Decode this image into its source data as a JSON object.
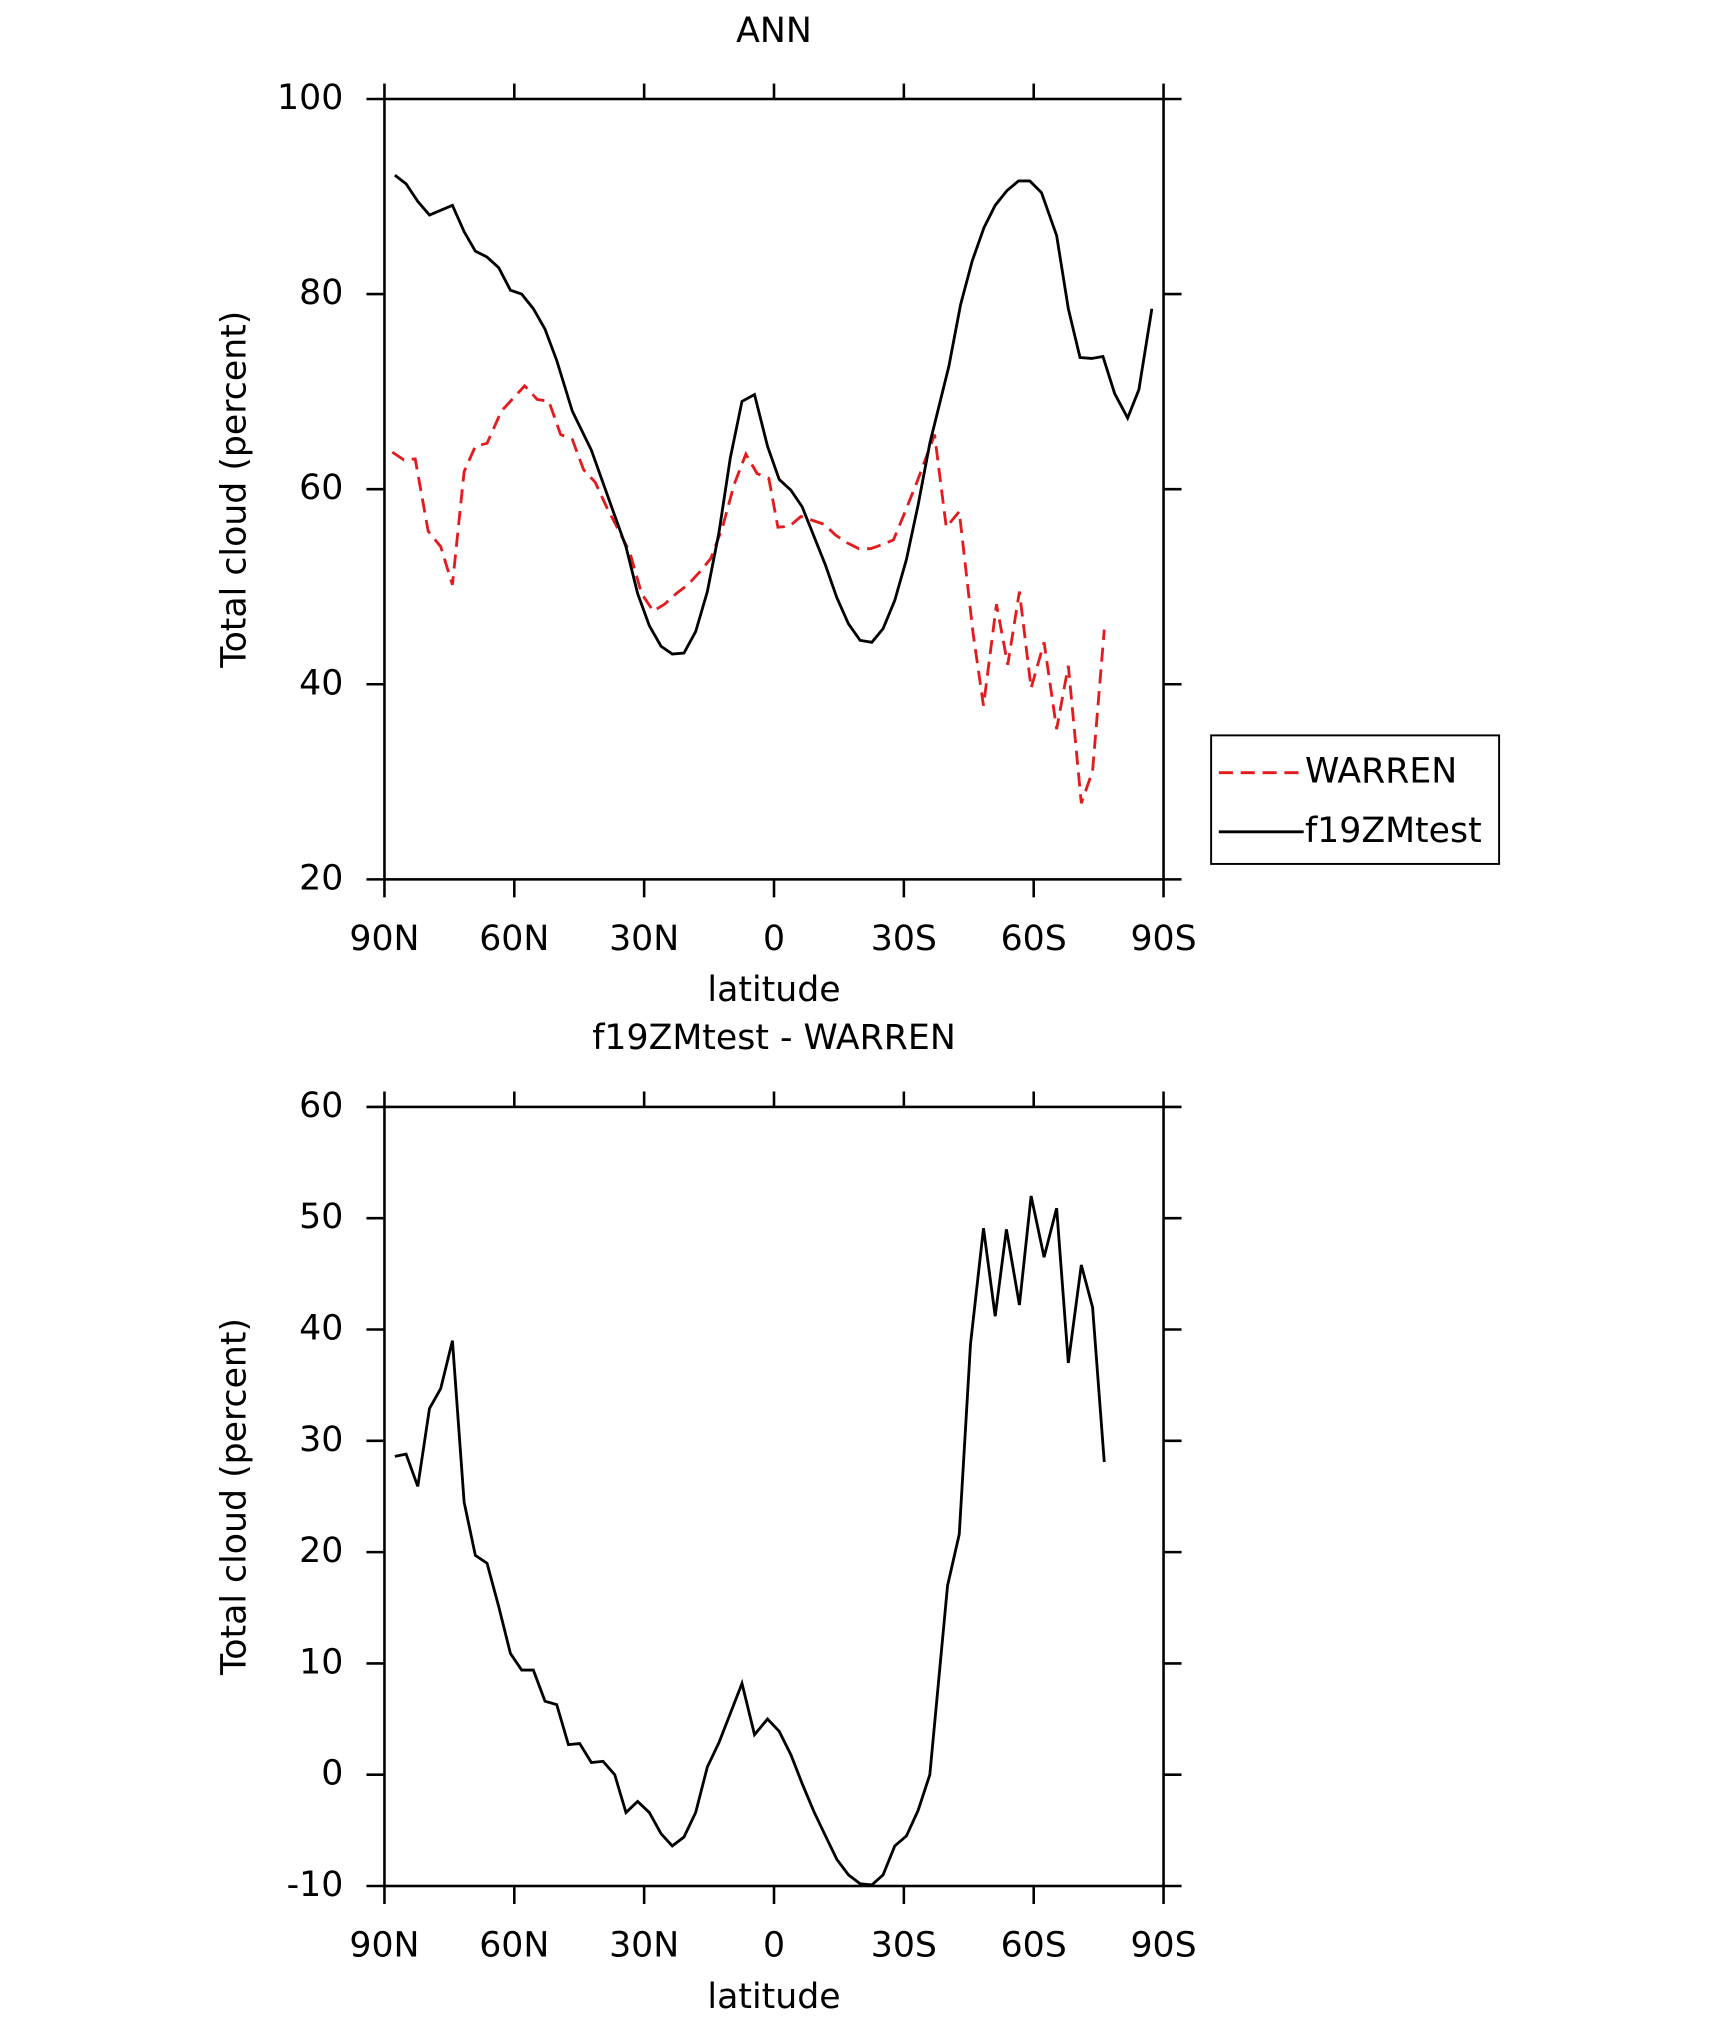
{
  "chart_data": [
    {
      "type": "line",
      "title": "ANN",
      "xlabel": "latitude",
      "ylabel": "Total cloud (percent)",
      "xlim": [
        90,
        -90
      ],
      "xticks": [
        {
          "value": 90,
          "label": "90N"
        },
        {
          "value": 60,
          "label": "60N"
        },
        {
          "value": 30,
          "label": "30N"
        },
        0,
        {
          "value": -30,
          "label": "30S"
        },
        {
          "value": -60,
          "label": "60S"
        },
        {
          "value": -90,
          "label": "90S"
        }
      ],
      "ylim": [
        20,
        100
      ],
      "yticks": [
        20,
        40,
        60,
        80,
        100
      ],
      "legend": "right",
      "series": [
        {
          "name": "WARREN",
          "color": "#e41a1c",
          "dash": true,
          "x": [
            88.2,
            85.5,
            82.9,
            79.9,
            77.0,
            74.3,
            71.6,
            69.0,
            66.3,
            63.0,
            57.6,
            54.7,
            52.0,
            49.3,
            46.6,
            44.0,
            41.3,
            38.6,
            35.9,
            33.3,
            30.6,
            27.9,
            25.3,
            22.6,
            19.9,
            17.2,
            14.6,
            11.9,
            9.2,
            6.5,
            3.9,
            1.2,
            -0.9,
            -3.6,
            -6.2,
            -8.9,
            -11.6,
            -14.2,
            -16.9,
            -19.6,
            -22.3,
            -24.9,
            -27.6,
            -30.3,
            -33.0,
            -37.1,
            -39.8,
            -42.8,
            -46.0,
            -48.4,
            -51.4,
            -54.0,
            -56.7,
            -59.4,
            -62.4,
            -65.3,
            -68.0,
            -71.0,
            -73.6,
            -76.3
          ],
          "values": [
            63.8,
            63.0,
            63.1,
            55.7,
            54.1,
            50.2,
            61.8,
            64.4,
            64.7,
            68.0,
            70.6,
            69.2,
            69.0,
            65.6,
            65.1,
            62.0,
            60.7,
            58.1,
            55.8,
            53.5,
            49.3,
            47.5,
            48.2,
            49.3,
            50.2,
            51.5,
            52.9,
            56.1,
            60.5,
            63.6,
            61.6,
            61.1,
            56.1,
            56.2,
            57.2,
            56.8,
            56.4,
            55.3,
            54.5,
            53.9,
            53.9,
            54.3,
            54.8,
            57.7,
            60.7,
            65.6,
            56.1,
            57.7,
            45.2,
            37.8,
            48.2,
            42.0,
            49.5,
            39.6,
            44.3,
            35.4,
            41.9,
            27.8,
            31.1,
            45.6
          ]
        },
        {
          "name": "f19ZMtest",
          "color": "#000000",
          "dash": false,
          "x": [
            87.6,
            85.0,
            82.3,
            79.6,
            74.3,
            71.6,
            69.0,
            66.3,
            63.6,
            60.9,
            58.3,
            55.6,
            52.9,
            50.2,
            46.6,
            42.2,
            37.7,
            34.2,
            31.5,
            28.8,
            26.1,
            23.5,
            20.8,
            18.1,
            15.4,
            12.7,
            10.1,
            7.4,
            4.5,
            1.5,
            -1.2,
            -3.9,
            -6.5,
            -9.2,
            -11.9,
            -14.5,
            -17.2,
            -19.9,
            -22.6,
            -25.2,
            -27.9,
            -30.6,
            -33.3,
            -36.0,
            -40.4,
            -43.1,
            -45.8,
            -48.5,
            -51.1,
            -53.8,
            -56.5,
            -59.1,
            -61.8,
            -65.3,
            -68.0,
            -70.7,
            -73.4,
            -76.0,
            -78.7,
            -81.7,
            -84.3,
            -87.3
          ],
          "values": [
            92.2,
            91.3,
            89.5,
            88.1,
            89.1,
            86.4,
            84.4,
            83.8,
            82.7,
            80.4,
            80.0,
            78.5,
            76.4,
            73.2,
            68.0,
            64.0,
            58.4,
            54.1,
            49.3,
            46.0,
            43.9,
            43.1,
            43.2,
            45.4,
            49.5,
            55.6,
            63.2,
            69.0,
            69.7,
            64.4,
            61.0,
            59.9,
            58.2,
            55.2,
            52.2,
            48.9,
            46.2,
            44.5,
            44.3,
            45.7,
            48.6,
            52.8,
            58.4,
            64.7,
            72.6,
            78.9,
            83.4,
            86.8,
            89.1,
            90.6,
            91.6,
            91.6,
            90.4,
            86.0,
            78.5,
            73.5,
            73.4,
            73.6,
            69.8,
            67.3,
            70.2,
            78.5
          ]
        }
      ]
    },
    {
      "type": "line",
      "title": "f19ZMtest - WARREN",
      "xlabel": "latitude",
      "ylabel": "Total cloud (percent)",
      "xlim": [
        90,
        -90
      ],
      "xticks": [
        {
          "value": 90,
          "label": "90N"
        },
        {
          "value": 60,
          "label": "60N"
        },
        {
          "value": 30,
          "label": "30N"
        },
        0,
        {
          "value": -30,
          "label": "30S"
        },
        {
          "value": -60,
          "label": "60S"
        },
        {
          "value": -90,
          "label": "90S"
        }
      ],
      "ylim": [
        -10,
        60
      ],
      "yticks": [
        -10,
        0,
        10,
        20,
        30,
        40,
        50,
        60
      ],
      "series": [
        {
          "color": "#000000",
          "dash": false,
          "x": [
            87.6,
            85.0,
            82.3,
            79.6,
            77.0,
            74.3,
            71.6,
            69.0,
            66.3,
            63.6,
            60.9,
            58.3,
            55.6,
            52.9,
            50.2,
            47.5,
            44.9,
            42.2,
            39.5,
            36.8,
            34.2,
            31.5,
            28.8,
            26.1,
            23.5,
            20.8,
            18.1,
            15.4,
            12.7,
            10.1,
            7.4,
            4.5,
            1.5,
            -1.2,
            -3.9,
            -6.5,
            -9.2,
            -11.9,
            -14.5,
            -17.2,
            -19.9,
            -22.6,
            -25.2,
            -27.9,
            -30.6,
            -33.3,
            -36.0,
            -40.1,
            -42.8,
            -45.4,
            -48.4,
            -51.1,
            -53.7,
            -56.7,
            -59.4,
            -62.4,
            -65.3,
            -68.0,
            -71.0,
            -73.6,
            -76.3
          ],
          "values": [
            28.6,
            28.8,
            25.9,
            32.9,
            34.7,
            39.0,
            24.5,
            19.7,
            19.0,
            15.1,
            10.9,
            9.4,
            9.4,
            6.6,
            6.3,
            2.7,
            2.8,
            1.1,
            1.2,
            0.0,
            -3.4,
            -2.4,
            -3.4,
            -5.3,
            -6.4,
            -5.6,
            -3.4,
            0.7,
            2.9,
            5.5,
            8.2,
            3.6,
            5.0,
            3.9,
            1.8,
            -0.8,
            -3.3,
            -5.5,
            -7.6,
            -9.0,
            -9.8,
            -9.9,
            -9.0,
            -6.4,
            -5.5,
            -3.2,
            0.0,
            17.0,
            21.6,
            38.7,
            49.1,
            41.2,
            49.0,
            42.2,
            52.0,
            46.5,
            50.9,
            37.0,
            45.8,
            42.0,
            28.1
          ]
        }
      ]
    }
  ]
}
